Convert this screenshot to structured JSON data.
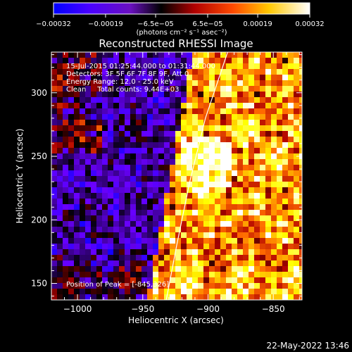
{
  "chart_data": {
    "type": "heatmap",
    "title": "Reconstructed RHESSI Image",
    "xlabel": "Heliocentric X (arcsec)",
    "ylabel": "Heliocentric Y (arcsec)",
    "xlim": [
      -1020,
      -828
    ],
    "ylim": [
      137,
      332
    ],
    "xticks": [
      -1000,
      -950,
      -900,
      -850
    ],
    "xtick_labels": [
      "−1000",
      "−950",
      "−900",
      "−850"
    ],
    "yticks": [
      150,
      200,
      250,
      300
    ],
    "ytick_labels": [
      "150",
      "200",
      "250",
      "300"
    ],
    "colorbar": {
      "ticks": [
        -0.00032,
        -0.00019,
        -6.5e-05,
        6.5e-05,
        0.00019,
        0.00032
      ],
      "tick_labels": [
        "−0.00032",
        "−0.00019",
        "−6.5e−05",
        "6.5e−05",
        "0.00019",
        "0.00032"
      ],
      "unit_label": "(photons cm⁻² s⁻¹ asec⁻²)",
      "colors": [
        "#0000ff",
        "#6a00ff",
        "#000000",
        "#b00000",
        "#ff6a00",
        "#ffff00",
        "#ffffff"
      ]
    },
    "annotations": [
      "15-Jul-2015 01:25:44.000 to 01:31:44.000",
      "Detectors: 3F 5F 6F 7F 8F 9F, Att 0",
      "Energy Range: 12.0 - 25.0 keV",
      "Clean     Total counts: 9.44E+03"
    ],
    "peak_label": "Position of Peak = [-845,326]",
    "limb_curve": [
      [
        -932,
        137
      ],
      [
        -924,
        180
      ],
      [
        -914,
        230
      ],
      [
        -902,
        280
      ],
      [
        -885,
        332
      ]
    ],
    "timestamp": "22-May-2022 13:46"
  }
}
